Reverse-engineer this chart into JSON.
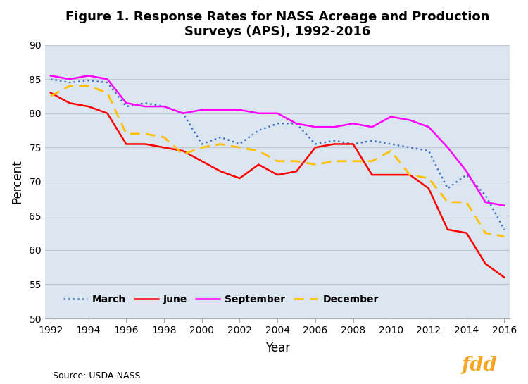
{
  "title": "Figure 1. Response Rates for NASS Acreage and Production\nSurveys (APS), 1992-2016",
  "xlabel": "Year",
  "ylabel": "Percent",
  "source": "Source: USDA-NASS",
  "ylim": [
    50,
    90
  ],
  "yticks": [
    50,
    55,
    60,
    65,
    70,
    75,
    80,
    85,
    90
  ],
  "xlim": [
    1992,
    2016
  ],
  "years": [
    1992,
    1993,
    1994,
    1995,
    1996,
    1997,
    1998,
    1999,
    2000,
    2001,
    2002,
    2003,
    2004,
    2005,
    2006,
    2007,
    2008,
    2009,
    2010,
    2011,
    2012,
    2013,
    2014,
    2015,
    2016
  ],
  "march": [
    85.0,
    84.5,
    84.8,
    84.5,
    81.0,
    81.5,
    81.0,
    80.0,
    75.5,
    76.5,
    75.5,
    77.5,
    78.5,
    78.5,
    75.5,
    76.0,
    75.5,
    76.0,
    75.5,
    75.0,
    74.5,
    69.0,
    71.0,
    68.0,
    63.0
  ],
  "june": [
    83.0,
    81.5,
    81.0,
    80.0,
    75.5,
    75.5,
    75.0,
    74.5,
    73.0,
    71.5,
    70.5,
    72.5,
    71.0,
    71.5,
    75.0,
    75.5,
    75.5,
    71.0,
    71.0,
    71.0,
    69.0,
    63.0,
    62.5,
    58.0,
    56.0
  ],
  "september": [
    85.5,
    85.0,
    85.5,
    85.0,
    81.5,
    81.0,
    81.0,
    80.0,
    80.5,
    80.5,
    80.5,
    80.0,
    80.0,
    78.5,
    78.0,
    78.0,
    78.5,
    78.0,
    79.5,
    79.0,
    78.0,
    75.0,
    71.5,
    67.0,
    66.5
  ],
  "december": [
    82.5,
    84.0,
    84.0,
    83.0,
    77.0,
    77.0,
    76.5,
    74.0,
    75.0,
    75.5,
    75.0,
    74.5,
    73.0,
    73.0,
    72.5,
    73.0,
    73.0,
    73.0,
    74.5,
    71.0,
    70.5,
    67.0,
    67.0,
    62.5,
    62.0
  ],
  "march_color": "#4472c4",
  "june_color": "#ff0000",
  "september_color": "#ff00ff",
  "december_color": "#ffc000",
  "fdd_bg": "#2e3875",
  "fdd_text": "#f5a623",
  "grid_color": "#c0c8d8",
  "plot_bg": "#dce6f1",
  "background_color": "#ffffff"
}
